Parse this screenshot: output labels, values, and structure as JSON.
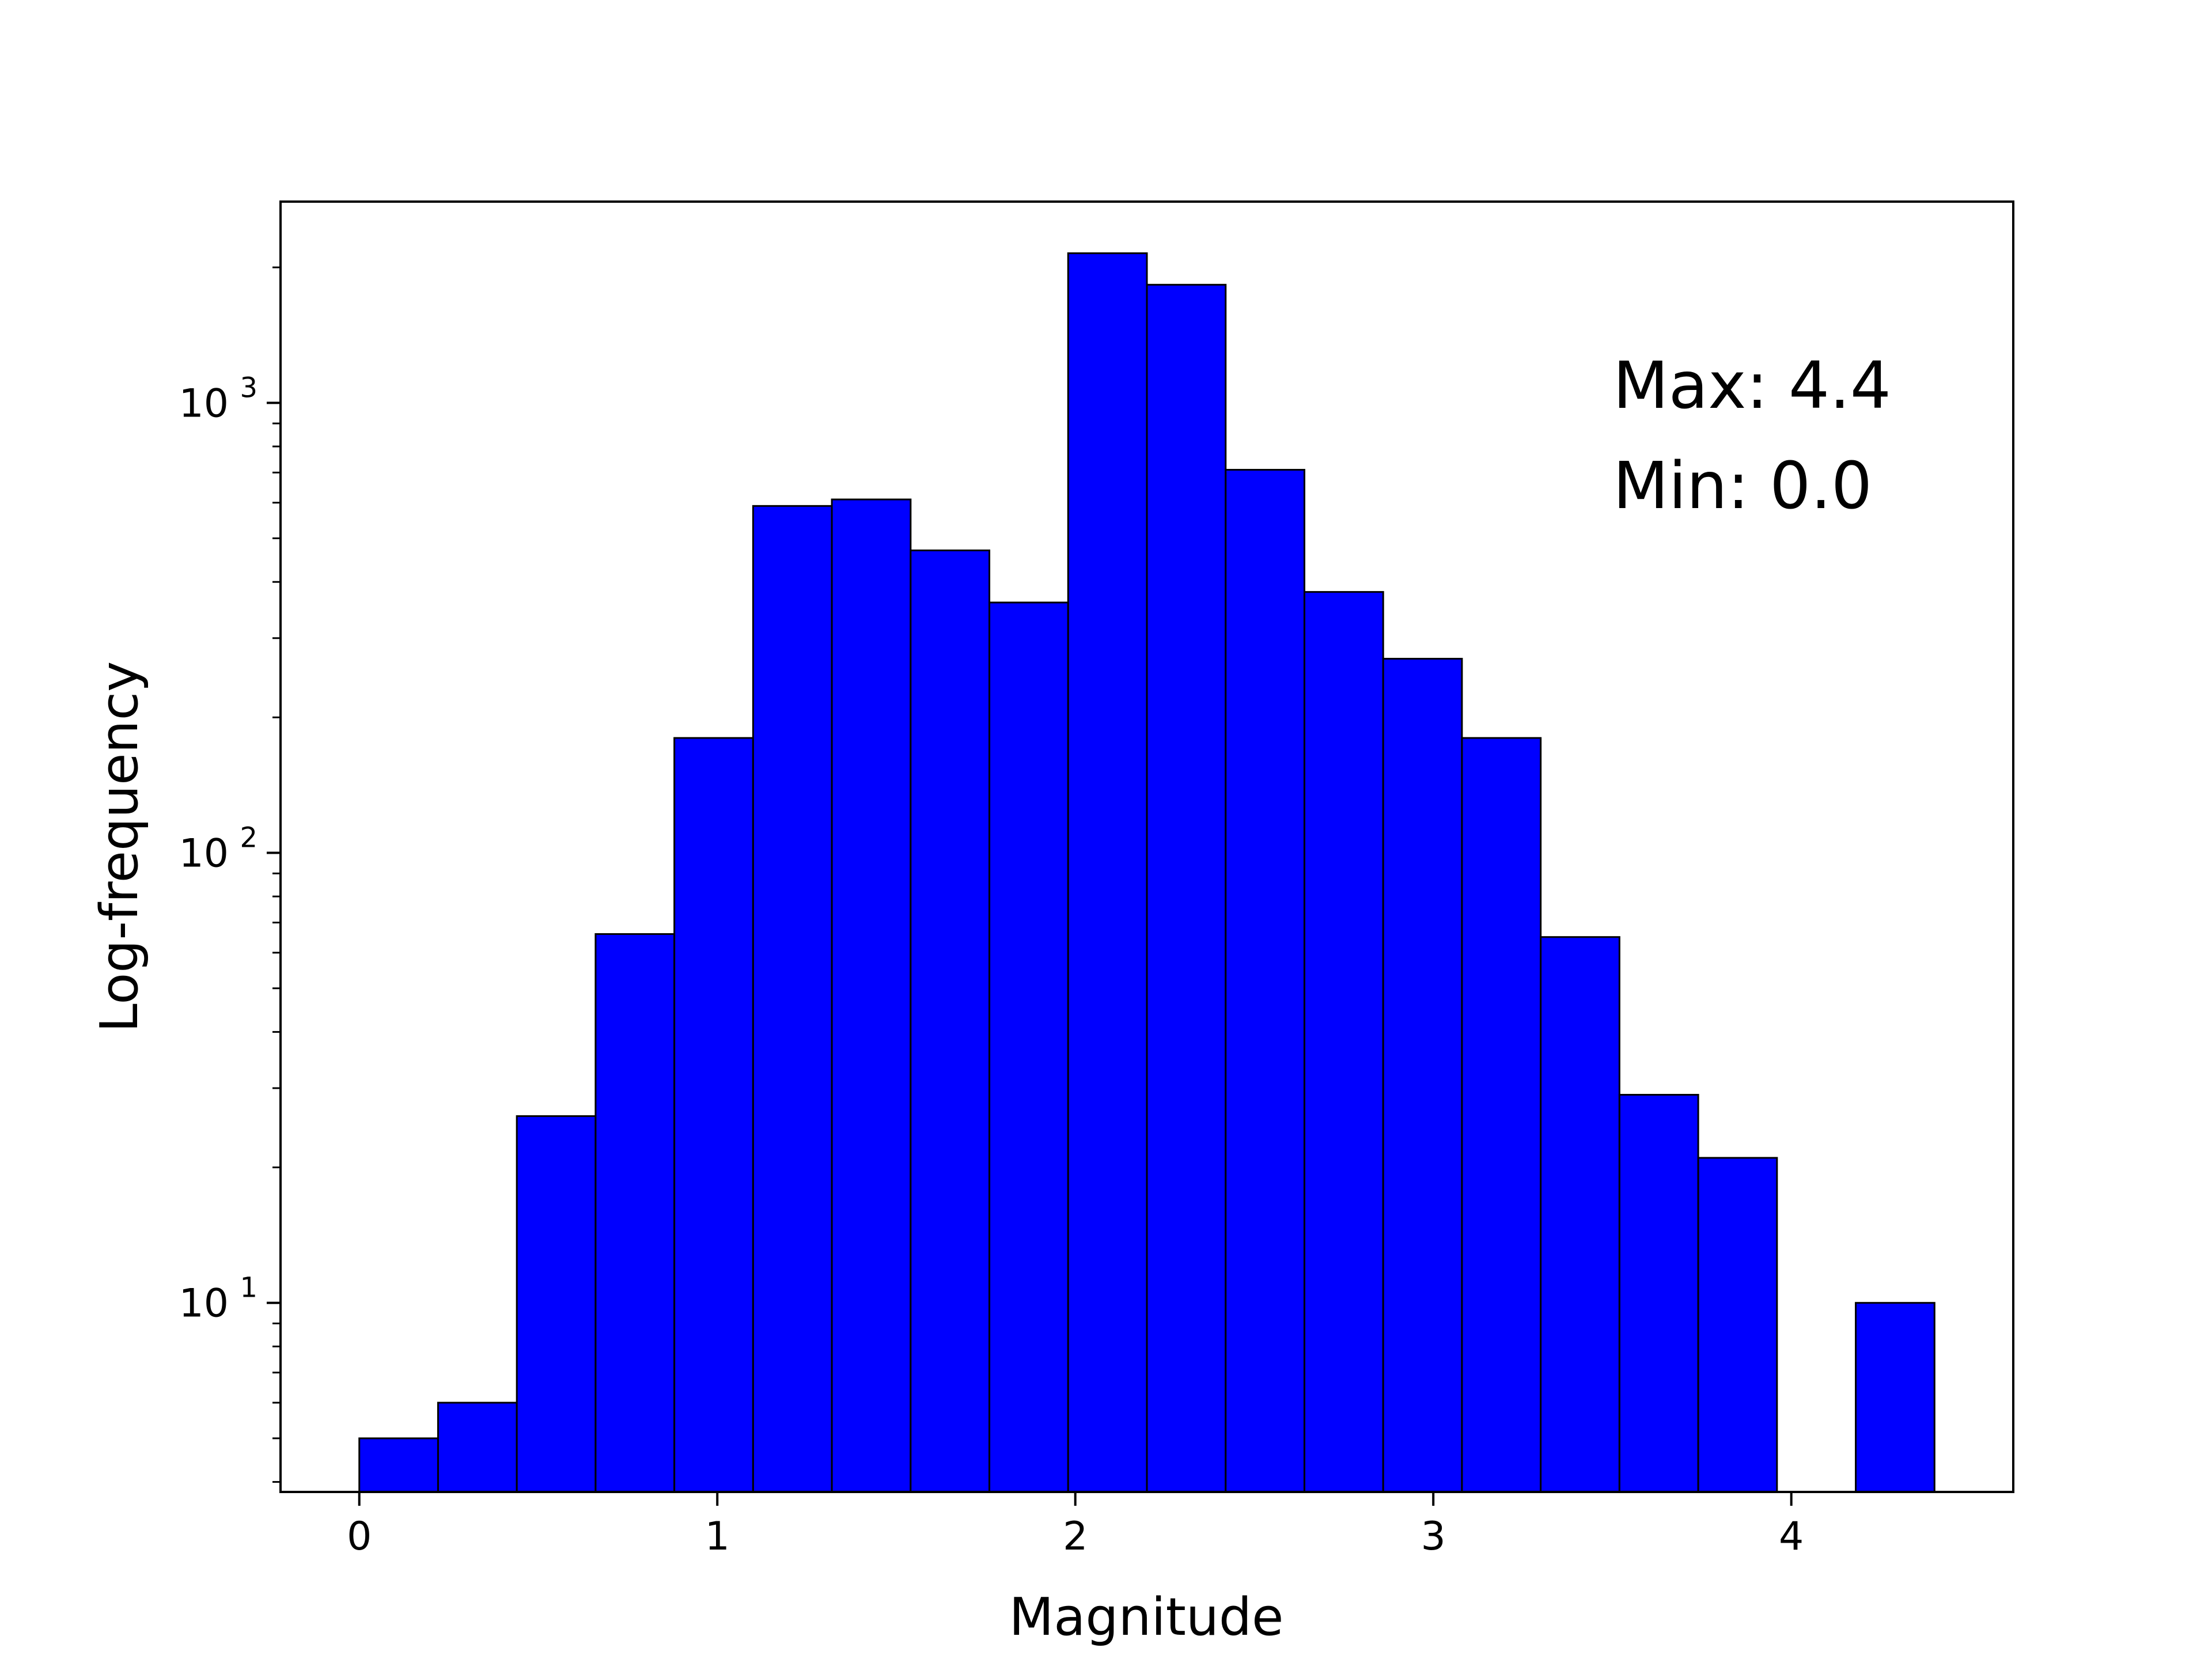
{
  "chart_data": {
    "type": "bar",
    "scale_y": "log",
    "grid": false,
    "bar_color": "#0000ff",
    "edge_color": "#000000",
    "xlabel": "Magnitude",
    "ylabel": "Log-frequency",
    "xlim": [
      -0.22,
      4.62
    ],
    "ylim": [
      3.8,
      2800
    ],
    "x_ticks": [
      {
        "value": 0,
        "label": "0"
      },
      {
        "value": 1,
        "label": "1"
      },
      {
        "value": 2,
        "label": "2"
      },
      {
        "value": 3,
        "label": "3"
      },
      {
        "value": 4,
        "label": "4"
      }
    ],
    "y_ticks": [
      {
        "value": 10,
        "base": "10",
        "exp": "1"
      },
      {
        "value": 100,
        "base": "10",
        "exp": "2"
      },
      {
        "value": 1000,
        "base": "10",
        "exp": "3"
      }
    ],
    "bin_edges": [
      0.0,
      0.22,
      0.44,
      0.66,
      0.88,
      1.1,
      1.32,
      1.54,
      1.76,
      1.98,
      2.2,
      2.42,
      2.64,
      2.86,
      3.08,
      3.3,
      3.52,
      3.74,
      3.96,
      4.18,
      4.4
    ],
    "values": [
      5,
      6,
      26,
      66,
      180,
      590,
      610,
      470,
      360,
      2150,
      1830,
      710,
      380,
      270,
      180,
      65,
      29,
      21,
      0,
      10
    ],
    "annotations": [
      "Max: 4.4",
      "Min: 0.0"
    ]
  }
}
